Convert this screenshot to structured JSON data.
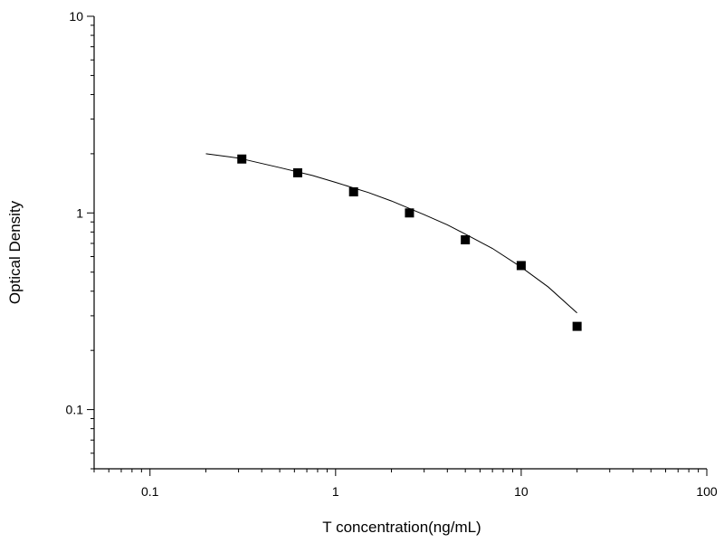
{
  "chart_data": {
    "type": "scatter",
    "title": "",
    "xlabel": "T concentration(ng/mL)",
    "ylabel": "Optical Density",
    "x_scale": "log",
    "y_scale": "log",
    "xlim": [
      0.05,
      100
    ],
    "ylim": [
      0.05,
      10
    ],
    "x_ticks": [
      {
        "value": 0.1,
        "label": "0.1"
      },
      {
        "value": 1,
        "label": "1"
      },
      {
        "value": 10,
        "label": "10"
      },
      {
        "value": 100,
        "label": "100"
      }
    ],
    "y_ticks": [
      {
        "value": 0.1,
        "label": "0.1"
      },
      {
        "value": 1,
        "label": "1"
      },
      {
        "value": 10,
        "label": "10"
      }
    ],
    "grid": false,
    "legend": "none",
    "marker_color": "#000000",
    "curve_color": "#000000",
    "series": [
      {
        "type": "scatter",
        "marker": "square",
        "x": [
          0.3125,
          0.625,
          1.25,
          2.5,
          5,
          10,
          20
        ],
        "y": [
          1.88,
          1.6,
          1.28,
          1.0,
          0.73,
          0.54,
          0.265
        ]
      },
      {
        "type": "line",
        "x": [
          0.2,
          0.3,
          0.5,
          0.75,
          1,
          1.5,
          2,
          3,
          4,
          5,
          7,
          10,
          14,
          20
        ],
        "y": [
          2.0,
          1.9,
          1.7,
          1.55,
          1.43,
          1.27,
          1.15,
          0.98,
          0.87,
          0.78,
          0.66,
          0.53,
          0.42,
          0.31
        ]
      }
    ]
  }
}
